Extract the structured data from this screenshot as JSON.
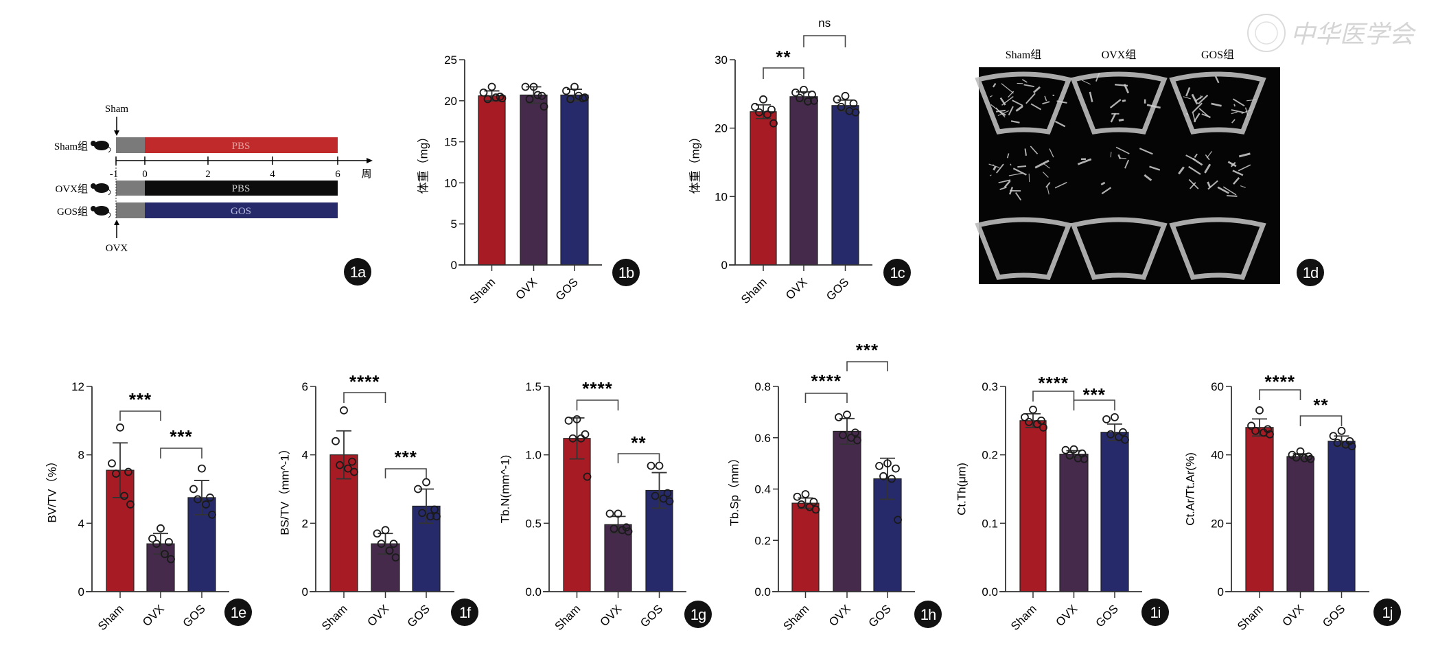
{
  "watermark": {
    "text": "中华医学会"
  },
  "colors": {
    "Sham": "#a71c24",
    "OVX": "#452a4c",
    "GOS": "#262a6b",
    "pre": "#7a7a7a"
  },
  "panel_1a": {
    "badge": "1a",
    "sham_arrow_label": "Sham",
    "ovx_arrow_label": "OVX",
    "axis_unit": "周",
    "ticks": [
      "-1",
      "0",
      "2",
      "4",
      "6"
    ],
    "groups": [
      {
        "name": "Sham组",
        "treatment": "PBS"
      },
      {
        "name": "OVX组",
        "treatment": "PBS"
      },
      {
        "name": "GOS组",
        "treatment": "GOS"
      }
    ]
  },
  "panel_1d": {
    "badge": "1d",
    "columns": [
      "Sham组",
      "OVX组",
      "GOS组"
    ]
  },
  "chart_data": [
    {
      "id": "1b",
      "type": "bar",
      "ylabel": "体重（mg）",
      "ylim": [
        0,
        25
      ],
      "yticks": [
        0,
        5,
        10,
        15,
        20,
        25
      ],
      "ytick_labels": [
        "0",
        "5",
        "10",
        "15",
        "20",
        "25"
      ],
      "categories": [
        "Sham",
        "OVX",
        "GOS"
      ],
      "means": [
        20.6,
        20.7,
        20.7
      ],
      "sd": [
        0.6,
        1.0,
        0.7
      ],
      "points": [
        [
          21.7,
          21.0,
          20.5,
          20.2,
          20.4,
          20.3
        ],
        [
          21.7,
          21.7,
          20.6,
          20.2,
          20.7,
          19.3
        ],
        [
          21.7,
          21.2,
          20.3,
          20.2,
          20.6,
          20.4
        ]
      ],
      "significance": []
    },
    {
      "id": "1c",
      "type": "bar",
      "ylabel": "体重（mg）",
      "ylim": [
        0,
        30
      ],
      "yticks": [
        0,
        10,
        20,
        30
      ],
      "ytick_labels": [
        "0",
        "10",
        "20",
        "30"
      ],
      "categories": [
        "Sham",
        "OVX",
        "GOS"
      ],
      "means": [
        22.4,
        24.6,
        23.3
      ],
      "sd": [
        1.0,
        0.7,
        0.8
      ],
      "points": [
        [
          24.2,
          23.1,
          22.7,
          22.3,
          22.0,
          20.7
        ],
        [
          25.6,
          25.2,
          24.9,
          24.4,
          23.9,
          24.0
        ],
        [
          24.7,
          24.2,
          23.6,
          23.1,
          22.5,
          22.3
        ]
      ],
      "significance": [
        {
          "from": "Sham",
          "to": "OVX",
          "label": "**"
        },
        {
          "from": "OVX",
          "to": "GOS",
          "label": "ns"
        }
      ]
    },
    {
      "id": "1e",
      "type": "bar",
      "ylabel": "BV/TV（%）",
      "ylim": [
        0,
        12
      ],
      "yticks": [
        0,
        4,
        8,
        12
      ],
      "ytick_labels": [
        "0",
        "4",
        "8",
        "12"
      ],
      "categories": [
        "Sham",
        "OVX",
        "GOS"
      ],
      "means": [
        7.1,
        2.8,
        5.5
      ],
      "sd": [
        1.6,
        0.6,
        1.0
      ],
      "points": [
        [
          9.6,
          7.5,
          7.0,
          6.9,
          5.6,
          5.1
        ],
        [
          3.7,
          3.1,
          2.9,
          2.8,
          2.2,
          1.9
        ],
        [
          7.2,
          6.0,
          5.5,
          5.4,
          5.1,
          4.5
        ]
      ],
      "significance": [
        {
          "from": "Sham",
          "to": "OVX",
          "label": "***"
        },
        {
          "from": "OVX",
          "to": "GOS",
          "label": "***"
        }
      ]
    },
    {
      "id": "1f",
      "type": "bar",
      "ylabel": "BS/TV（mm^-1）",
      "ylim": [
        0,
        6
      ],
      "yticks": [
        0,
        2,
        4,
        6
      ],
      "ytick_labels": [
        "0",
        "2",
        "4",
        "6"
      ],
      "categories": [
        "Sham",
        "OVX",
        "GOS"
      ],
      "means": [
        4.0,
        1.4,
        2.5
      ],
      "sd": [
        0.7,
        0.3,
        0.5
      ],
      "points": [
        [
          5.3,
          4.4,
          3.8,
          3.7,
          3.6,
          3.5
        ],
        [
          1.8,
          1.7,
          1.4,
          1.4,
          1.2,
          1.0
        ],
        [
          3.2,
          3.0,
          2.4,
          2.3,
          2.2,
          2.2
        ]
      ],
      "significance": [
        {
          "from": "Sham",
          "to": "OVX",
          "label": "****"
        },
        {
          "from": "OVX",
          "to": "GOS",
          "label": "***"
        }
      ]
    },
    {
      "id": "1g",
      "type": "bar",
      "ylabel": "Tb.N(mm^-1)",
      "ylim": [
        0,
        1.5
      ],
      "yticks": [
        0,
        0.5,
        1.0,
        1.5
      ],
      "ytick_labels": [
        "0.0",
        "0.5",
        "1.0",
        "1.5"
      ],
      "categories": [
        "Sham",
        "OVX",
        "GOS"
      ],
      "means": [
        1.12,
        0.49,
        0.74
      ],
      "sd": [
        0.15,
        0.06,
        0.13
      ],
      "points": [
        [
          1.26,
          1.25,
          1.15,
          1.12,
          1.12,
          0.84
        ],
        [
          0.57,
          0.57,
          0.47,
          0.46,
          0.45,
          0.44
        ],
        [
          0.92,
          0.92,
          0.72,
          0.7,
          0.68,
          0.66
        ]
      ],
      "significance": [
        {
          "from": "Sham",
          "to": "OVX",
          "label": "****"
        },
        {
          "from": "OVX",
          "to": "GOS",
          "label": "**"
        }
      ]
    },
    {
      "id": "1h",
      "type": "bar",
      "ylabel": "Tb.Sp（mm）",
      "ylim": [
        0,
        0.8
      ],
      "yticks": [
        0,
        0.2,
        0.4,
        0.6,
        0.8
      ],
      "ytick_labels": [
        "0.0",
        "0.2",
        "0.4",
        "0.6",
        "0.8"
      ],
      "categories": [
        "Sham",
        "OVX",
        "GOS"
      ],
      "means": [
        0.345,
        0.625,
        0.44
      ],
      "sd": [
        0.02,
        0.05,
        0.08
      ],
      "points": [
        [
          0.38,
          0.37,
          0.35,
          0.34,
          0.33,
          0.32
        ],
        [
          0.69,
          0.68,
          0.62,
          0.61,
          0.6,
          0.59
        ],
        [
          0.5,
          0.49,
          0.48,
          0.45,
          0.44,
          0.28
        ]
      ],
      "significance": [
        {
          "from": "Sham",
          "to": "OVX",
          "label": "****"
        },
        {
          "from": "OVX",
          "to": "GOS",
          "label": "***"
        }
      ]
    },
    {
      "id": "1i",
      "type": "bar",
      "ylabel": "Ct.Th(μm)",
      "ylim": [
        0,
        0.3
      ],
      "yticks": [
        0,
        0.1,
        0.2,
        0.3
      ],
      "ytick_labels": [
        "0.0",
        "0.1",
        "0.2",
        "0.3"
      ],
      "categories": [
        "Sham",
        "OVX",
        "GOS"
      ],
      "means": [
        0.25,
        0.201,
        0.233
      ],
      "sd": [
        0.01,
        0.005,
        0.012
      ],
      "points": [
        [
          0.266,
          0.255,
          0.25,
          0.248,
          0.245,
          0.24
        ],
        [
          0.208,
          0.207,
          0.202,
          0.199,
          0.195,
          0.194
        ],
        [
          0.255,
          0.252,
          0.233,
          0.23,
          0.226,
          0.222
        ]
      ],
      "significance": [
        {
          "from": "Sham",
          "to": "OVX",
          "label": "****"
        },
        {
          "from": "OVX",
          "to": "GOS",
          "label": "***"
        }
      ]
    },
    {
      "id": "1j",
      "type": "bar",
      "ylabel": "Ct.Ar/Tt.Ar(%)",
      "ylim": [
        0,
        60
      ],
      "yticks": [
        0,
        20,
        40,
        60
      ],
      "ytick_labels": [
        "0",
        "20",
        "40",
        "60"
      ],
      "categories": [
        "Sham",
        "OVX",
        "GOS"
      ],
      "means": [
        48,
        39.5,
        44
      ],
      "sd": [
        2.5,
        0.8,
        1.5
      ],
      "points": [
        [
          53,
          48.5,
          47.5,
          47,
          46.5,
          46
        ],
        [
          41,
          40,
          39.5,
          39.2,
          39,
          38.8
        ],
        [
          47,
          45.5,
          44,
          43.5,
          43,
          42.5
        ]
      ],
      "significance": [
        {
          "from": "Sham",
          "to": "OVX",
          "label": "****"
        },
        {
          "from": "OVX",
          "to": "GOS",
          "label": "**"
        }
      ]
    }
  ]
}
